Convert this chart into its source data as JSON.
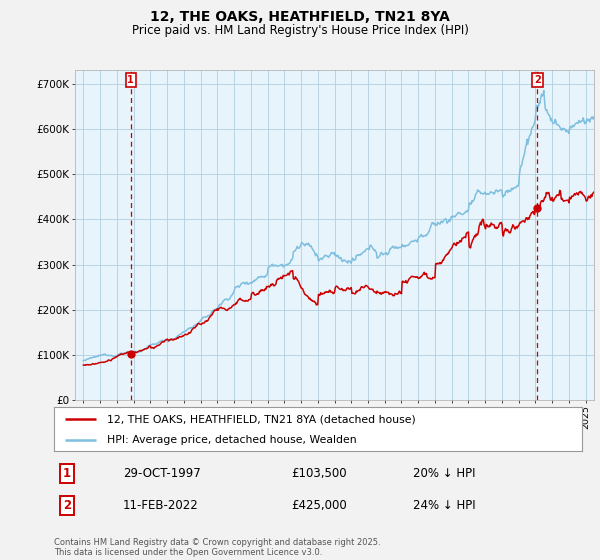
{
  "title": "12, THE OAKS, HEATHFIELD, TN21 8YA",
  "subtitle": "Price paid vs. HM Land Registry's House Price Index (HPI)",
  "legend_label_red": "12, THE OAKS, HEATHFIELD, TN21 8YA (detached house)",
  "legend_label_blue": "HPI: Average price, detached house, Wealden",
  "transaction1": {
    "label": "1",
    "date": "29-OCT-1997",
    "price": "£103,500",
    "hpi": "20% ↓ HPI",
    "year": 1997.83
  },
  "transaction2": {
    "label": "2",
    "date": "11-FEB-2022",
    "price": "£425,000",
    "hpi": "24% ↓ HPI",
    "year": 2022.12
  },
  "red_points": [
    [
      1997.83,
      103500
    ],
    [
      2022.12,
      425000
    ]
  ],
  "xlim": [
    1994.5,
    2025.5
  ],
  "ylim": [
    0,
    730000
  ],
  "yticks": [
    0,
    100000,
    200000,
    300000,
    400000,
    500000,
    600000,
    700000
  ],
  "ytick_labels": [
    "£0",
    "£100K",
    "£200K",
    "£300K",
    "£400K",
    "£500K",
    "£600K",
    "£700K"
  ],
  "red_color": "#cc0000",
  "blue_color": "#7fbfdf",
  "chart_bg": "#e8f4fb",
  "grid_color": "#b0cfe0",
  "bg_color": "#f0f0f0",
  "footnote": "Contains HM Land Registry data © Crown copyright and database right 2025.\nThis data is licensed under the Open Government Licence v3.0."
}
